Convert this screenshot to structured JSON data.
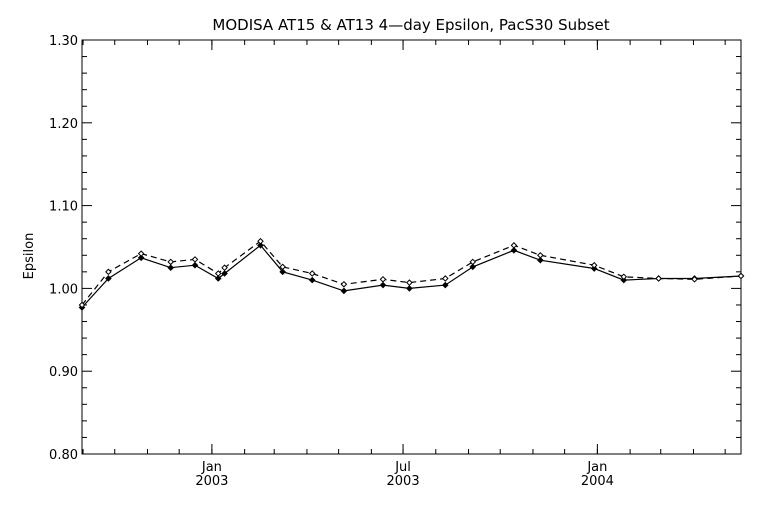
{
  "chart_data": {
    "type": "line",
    "title": "MODISA AT15 & AT13 4—day Epsilon, PacS30 Subset",
    "xlabel": "",
    "ylabel": "Epsilon",
    "ylim": [
      0.8,
      1.3
    ],
    "xlim": [
      "2002-08-31",
      "2004-05-16"
    ],
    "yticks": [
      "0.80",
      "0.90",
      "1.00",
      "1.10",
      "1.20",
      "1.30"
    ],
    "xticks": [
      {
        "date": "2003-01-01",
        "month": "Jan",
        "year": "2003"
      },
      {
        "date": "2003-07-01",
        "month": "Jul",
        "year": "2003"
      },
      {
        "date": "2004-01-01",
        "month": "Jan",
        "year": "2004"
      }
    ],
    "grid": false,
    "legend": "none",
    "series": [
      {
        "style": "solid",
        "x": [
          "2002-08-31",
          "2002-09-25",
          "2002-10-26",
          "2002-11-23",
          "2002-12-16",
          "2003-01-07",
          "2003-01-13",
          "2003-02-16",
          "2003-03-09",
          "2003-04-06",
          "2003-05-06",
          "2003-06-12",
          "2003-07-07",
          "2003-08-10",
          "2003-09-05",
          "2003-10-14",
          "2003-11-08",
          "2003-12-29",
          "2004-01-26",
          "2004-02-28",
          "2004-04-02",
          "2004-05-16"
        ],
        "y": [
          0.977,
          1.012,
          1.037,
          1.025,
          1.028,
          1.012,
          1.018,
          1.052,
          1.02,
          1.01,
          0.997,
          1.004,
          1.0,
          1.004,
          1.026,
          1.046,
          1.034,
          1.024,
          1.01,
          1.012,
          1.012,
          1.015
        ]
      },
      {
        "style": "dashed",
        "x": [
          "2002-08-31",
          "2002-09-25",
          "2002-10-26",
          "2002-11-23",
          "2002-12-16",
          "2003-01-07",
          "2003-01-13",
          "2003-02-16",
          "2003-03-09",
          "2003-04-06",
          "2003-05-06",
          "2003-06-12",
          "2003-07-07",
          "2003-08-10",
          "2003-09-05",
          "2003-10-14",
          "2003-11-08",
          "2003-12-29",
          "2004-01-26",
          "2004-02-28",
          "2004-04-02",
          "2004-05-16"
        ],
        "y": [
          0.98,
          1.02,
          1.042,
          1.032,
          1.035,
          1.018,
          1.025,
          1.057,
          1.026,
          1.018,
          1.005,
          1.011,
          1.007,
          1.012,
          1.032,
          1.052,
          1.04,
          1.028,
          1.014,
          1.012,
          1.011,
          1.015
        ]
      }
    ]
  }
}
